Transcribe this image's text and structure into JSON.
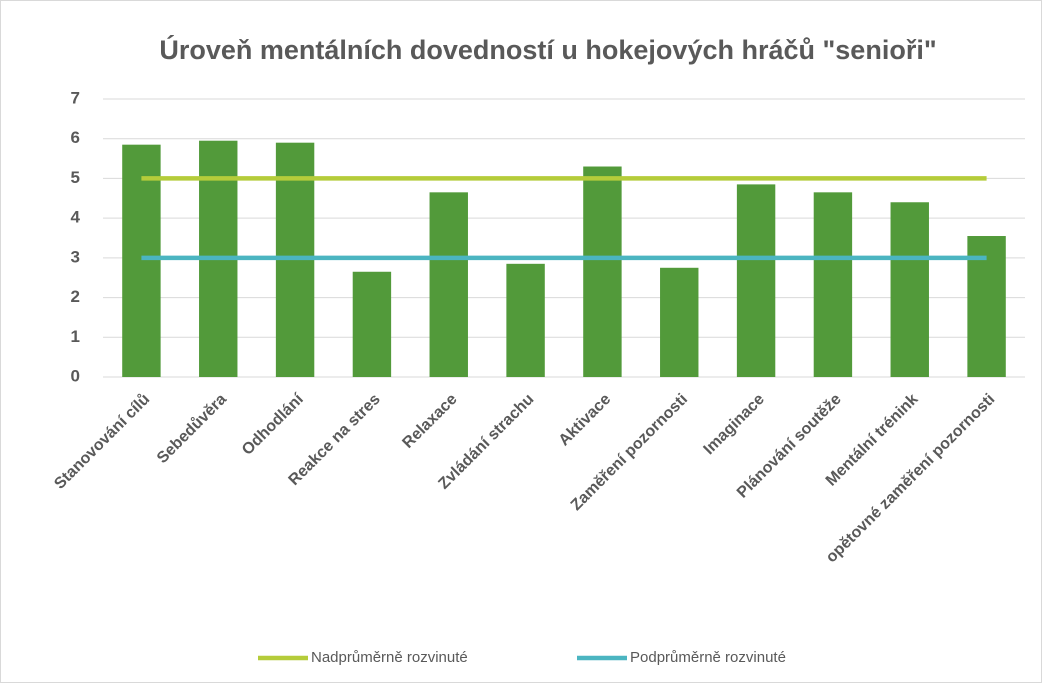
{
  "chart_data": {
    "type": "bar",
    "title": "Úroveň mentálních dovedností u hokejových hráčů \"senioři\"",
    "categories": [
      "Stanovování cílů",
      "Sebedůvěra",
      "Odhodlání",
      "Reakce na stres",
      "Relaxace",
      "Zvládání strachu",
      "Aktivace",
      "Zaměření pozornosti",
      "Imaginace",
      "Plánování soutěže",
      "Mentální trénink",
      "opětovné zaměření pozornosti"
    ],
    "values": [
      5.85,
      5.95,
      5.9,
      2.65,
      4.65,
      2.85,
      5.3,
      2.75,
      4.85,
      4.65,
      4.4,
      3.55
    ],
    "color": "#529a3a",
    "lines": [
      {
        "name": "Nadprůměrně rozvinuté",
        "color": "#b5cc3a",
        "values": [
          5,
          5,
          5,
          5,
          5,
          5,
          5,
          5,
          5,
          5,
          5,
          5
        ]
      },
      {
        "name": "Podprůměrně rozvinuté",
        "color": "#4bb5c1",
        "values": [
          3,
          3,
          3,
          3,
          3,
          3,
          3,
          3,
          3,
          3,
          3,
          3
        ]
      }
    ],
    "ylim": [
      0,
      7
    ],
    "yticks": [
      0,
      1,
      2,
      3,
      4,
      5,
      6,
      7
    ],
    "grid": true,
    "legend": "bottom"
  }
}
